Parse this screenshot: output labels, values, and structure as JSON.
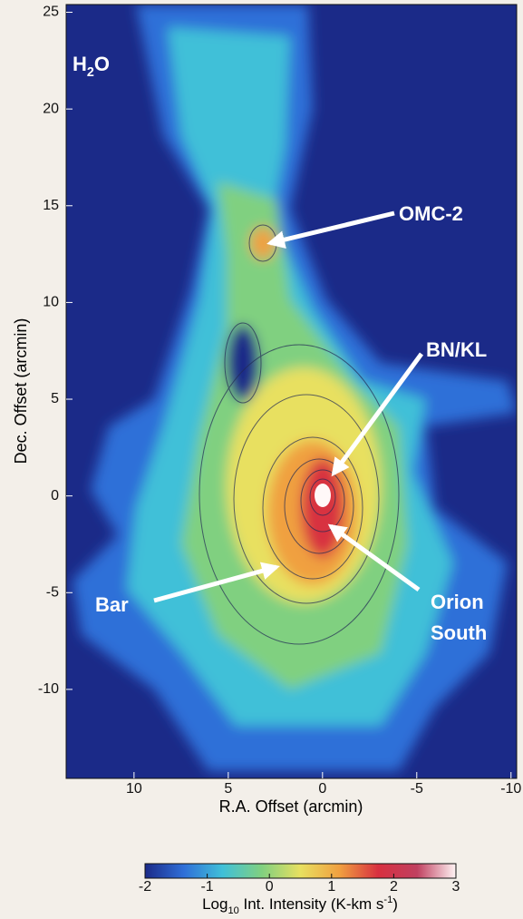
{
  "chart_data": {
    "type": "heatmap",
    "label_parts": [
      "H",
      "2",
      "O"
    ],
    "xlabel": "R.A. Offset (arcmin)",
    "ylabel": "Dec. Offset (arcmin)",
    "xlim": [
      13.6,
      -10.3
    ],
    "xticks": [
      10,
      5,
      0,
      -5,
      -10
    ],
    "ylim": [
      -14.6,
      25.4
    ],
    "yticks": [
      25,
      20,
      15,
      10,
      5,
      0,
      -5,
      -10
    ],
    "colorbar": {
      "lim": [
        -2,
        3
      ],
      "ticks": [
        -2,
        -1,
        0,
        1,
        2,
        3
      ],
      "label_parts": [
        "Log",
        "10",
        " Int. Intensity (K-km s",
        "-1",
        ")"
      ],
      "colors": [
        "#1b2a88",
        "#2f6fd8",
        "#40c0d8",
        "#80d080",
        "#e8e060",
        "#f0a040",
        "#d83040",
        "#c04060",
        "#fff4f4"
      ]
    },
    "annotations": [
      {
        "lines": [
          "OMC-2"
        ]
      },
      {
        "lines": [
          "BN/KL"
        ]
      },
      {
        "lines": [
          "Bar"
        ]
      },
      {
        "lines": [
          "Orion",
          "South"
        ]
      }
    ]
  }
}
